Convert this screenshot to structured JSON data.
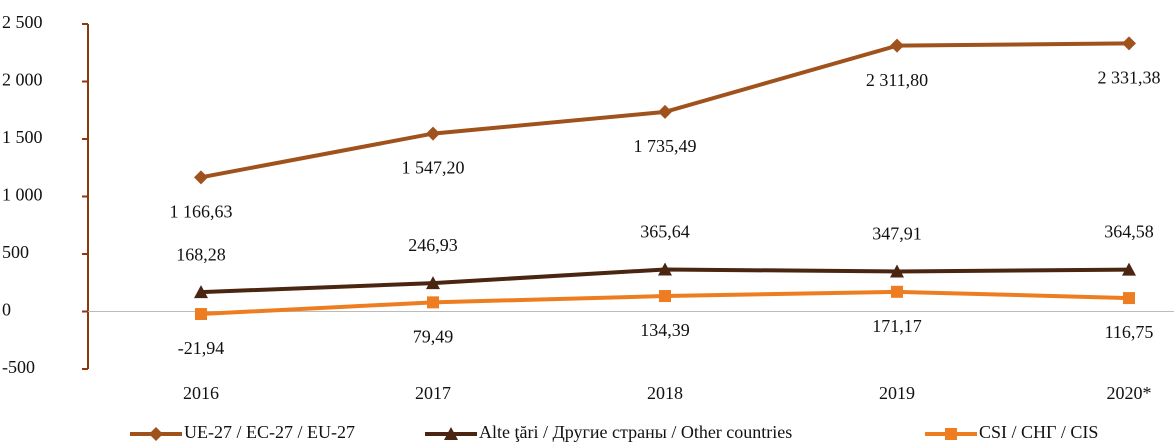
{
  "chart_data": {
    "type": "line",
    "categories": [
      "2016",
      "2017",
      "2018",
      "2019",
      "2020*"
    ],
    "series": [
      {
        "name": "UE-27 / ЕС-27 / EU-27",
        "color": "#a0521d",
        "marker": "diamond",
        "values": [
          1166.63,
          1547.2,
          1735.49,
          2311.8,
          2331.38
        ],
        "value_labels": [
          "1 166,63",
          "1 547,20",
          "1 735,49",
          "2 311,80",
          "2 331,38"
        ]
      },
      {
        "name": "Alte ţări / Другие страны / Other countries",
        "color": "#4a2512",
        "marker": "triangle",
        "values": [
          168.28,
          246.93,
          365.64,
          347.91,
          364.58
        ],
        "value_labels": [
          "168,28",
          "246,93",
          "365,64",
          "347,91",
          "364,58"
        ]
      },
      {
        "name": "CSI / СНГ / CIS",
        "color": "#ee7d22",
        "marker": "square",
        "values": [
          -21.94,
          79.49,
          134.39,
          171.17,
          116.75
        ],
        "value_labels": [
          "-21,94",
          "79,49",
          "134,39",
          "171,17",
          "116,75"
        ]
      }
    ],
    "ylim": [
      -500,
      2500
    ],
    "yticks": [
      {
        "value": 2500,
        "label": "2 500"
      },
      {
        "value": 2000,
        "label": "2 000"
      },
      {
        "value": 1500,
        "label": "1 500"
      },
      {
        "value": 1000,
        "label": "1 000"
      },
      500,
      0,
      -500
    ],
    "legend": "bottom"
  }
}
